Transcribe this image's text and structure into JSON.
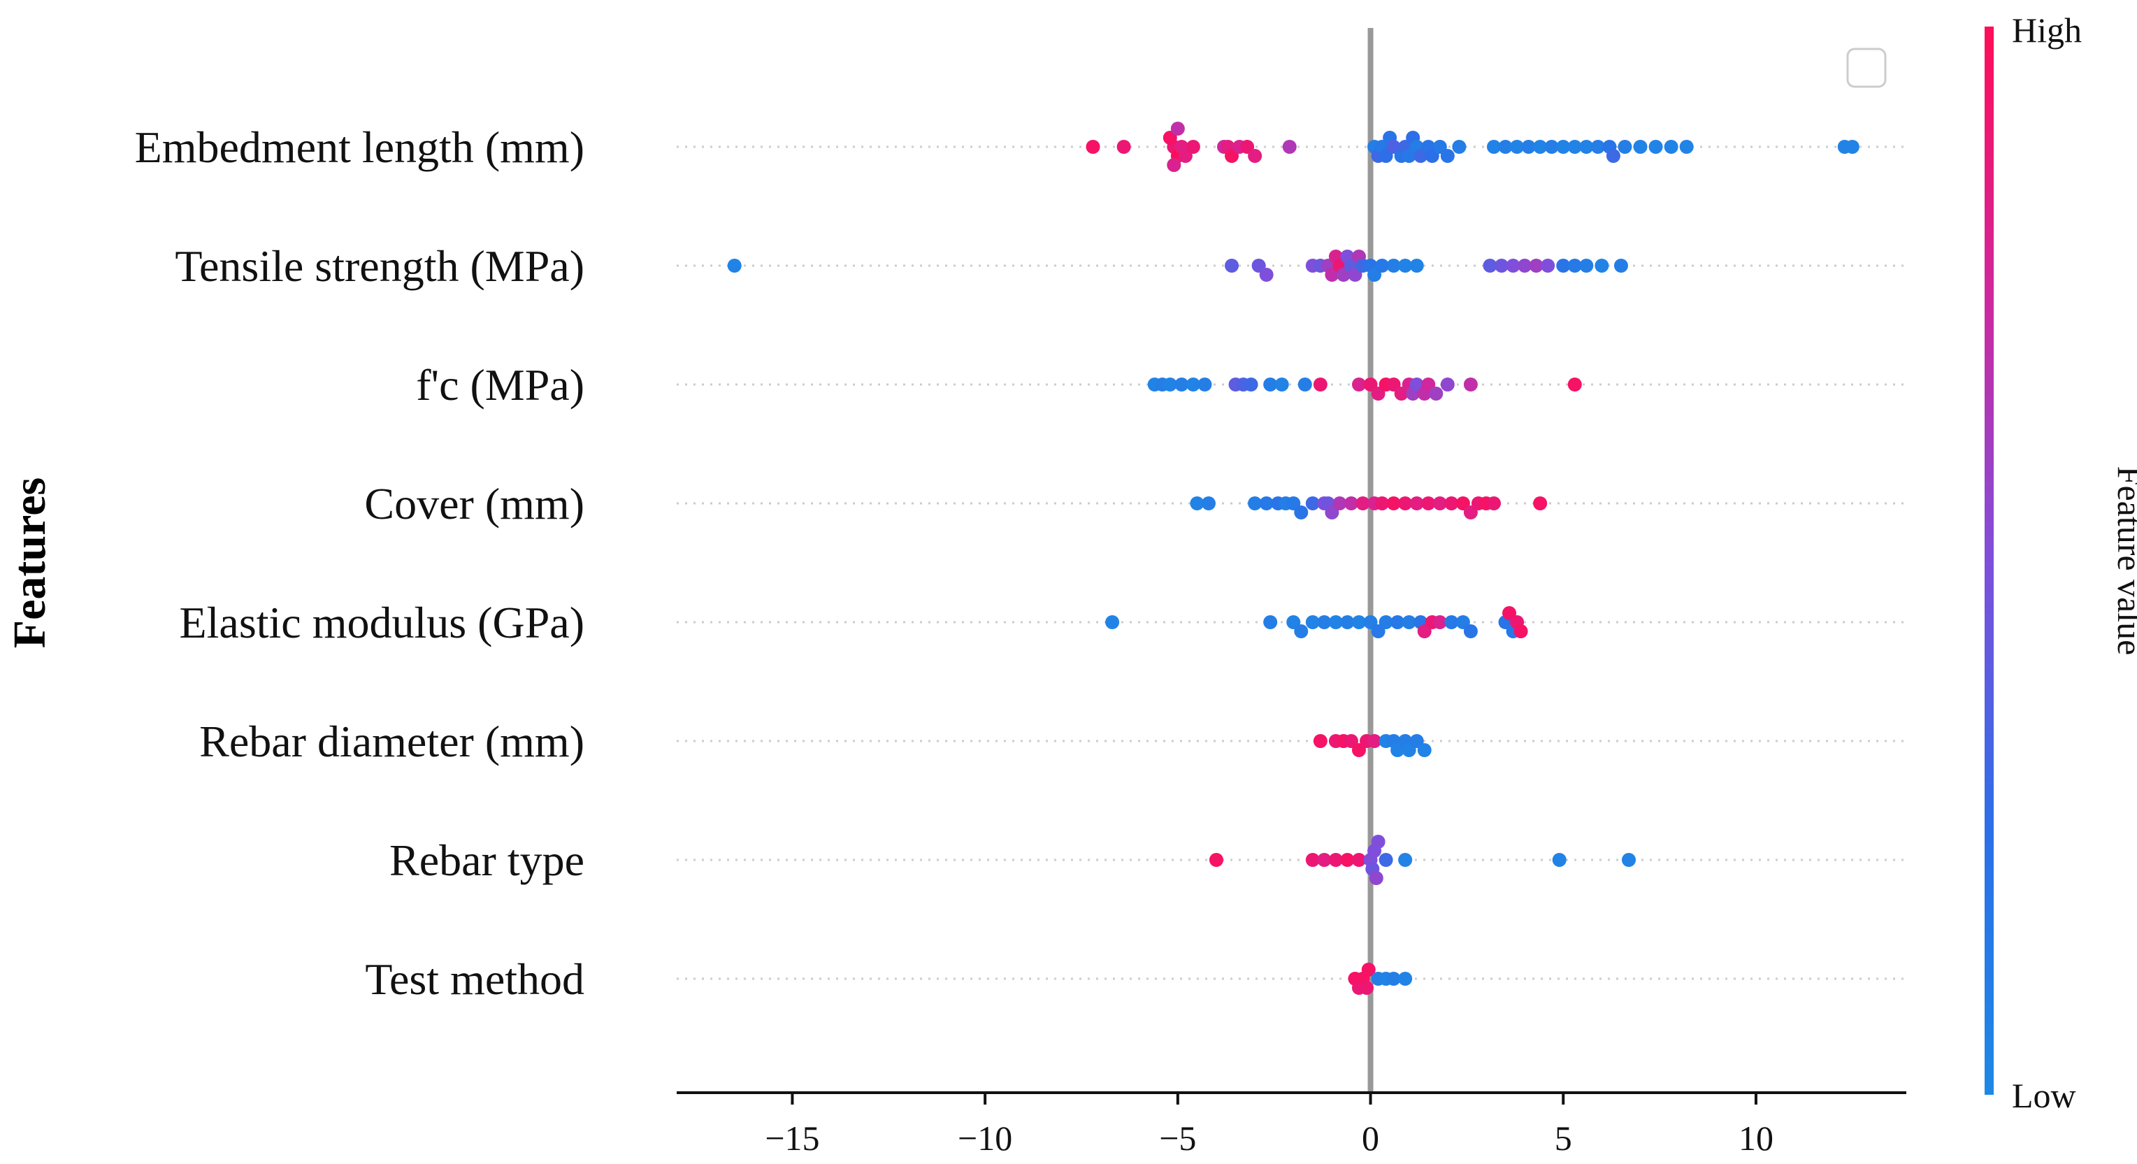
{
  "chart_data": {
    "type": "scatter",
    "subtype": "shap-beeswarm",
    "ylabel": "Features",
    "xlim": [
      -18,
      13.9
    ],
    "xticks": [
      -15,
      -10,
      -5,
      0,
      5,
      10
    ],
    "xtick_labels": [
      "−15",
      "−10",
      "−5",
      "0",
      "5",
      "10"
    ],
    "colorbar": {
      "label": "Feature value",
      "high_label": "High",
      "low_label": "Low",
      "low_color": "#1e88e5",
      "high_color": "#ff0d57"
    },
    "zero_line_color": "#999999",
    "legend": "top-right (empty)",
    "features": [
      {
        "name": "Embedment length (mm)",
        "points": [
          [
            -7.2,
            0.95
          ],
          [
            -6.4,
            0.9
          ],
          [
            -5.1,
            0.9
          ],
          [
            -5.0,
            1.0
          ],
          [
            -5.2,
            0.95
          ],
          [
            -4.9,
            0.85
          ],
          [
            -5.1,
            0.8
          ],
          [
            -4.8,
            0.85
          ],
          [
            -4.6,
            0.9
          ],
          [
            -5.0,
            0.7
          ],
          [
            -3.8,
            0.75
          ],
          [
            -3.7,
            0.85
          ],
          [
            -3.6,
            0.95
          ],
          [
            -3.4,
            0.8
          ],
          [
            -3.2,
            0.9
          ],
          [
            -3.0,
            0.85
          ],
          [
            -2.1,
            0.65
          ],
          [
            0.1,
            0.1
          ],
          [
            0.2,
            0.3
          ],
          [
            0.3,
            0.15
          ],
          [
            0.4,
            0.25
          ],
          [
            0.5,
            0.2
          ],
          [
            0.6,
            0.35
          ],
          [
            0.8,
            0.2
          ],
          [
            0.9,
            0.3
          ],
          [
            1.0,
            0.15
          ],
          [
            1.1,
            0.25
          ],
          [
            1.2,
            0.1
          ],
          [
            1.3,
            0.3
          ],
          [
            1.5,
            0.2
          ],
          [
            1.6,
            0.25
          ],
          [
            1.8,
            0.15
          ],
          [
            2.0,
            0.2
          ],
          [
            2.3,
            0.1
          ],
          [
            3.2,
            0.05
          ],
          [
            3.5,
            0.1
          ],
          [
            3.8,
            0.05
          ],
          [
            4.1,
            0.1
          ],
          [
            4.4,
            0.05
          ],
          [
            4.7,
            0.1
          ],
          [
            5.0,
            0.05
          ],
          [
            5.3,
            0.05
          ],
          [
            5.6,
            0.05
          ],
          [
            5.9,
            0.1
          ],
          [
            6.2,
            0.2
          ],
          [
            6.3,
            0.3
          ],
          [
            6.6,
            0.1
          ],
          [
            7.0,
            0.05
          ],
          [
            7.4,
            0.05
          ],
          [
            7.8,
            0.05
          ],
          [
            8.2,
            0.05
          ],
          [
            12.3,
            0.05
          ],
          [
            12.5,
            0.05
          ]
        ]
      },
      {
        "name": "Tensile strength (MPa)",
        "points": [
          [
            -16.5,
            0.05
          ],
          [
            -3.6,
            0.4
          ],
          [
            -2.9,
            0.45
          ],
          [
            -2.7,
            0.5
          ],
          [
            -1.5,
            0.5
          ],
          [
            -1.3,
            0.45
          ],
          [
            -1.1,
            0.6
          ],
          [
            -1.0,
            0.7
          ],
          [
            -0.9,
            0.8
          ],
          [
            -0.8,
            0.9
          ],
          [
            -0.7,
            0.6
          ],
          [
            -0.6,
            0.5
          ],
          [
            -0.5,
            0.4
          ],
          [
            -0.4,
            0.55
          ],
          [
            -0.3,
            0.65
          ],
          [
            -0.2,
            0.3
          ],
          [
            0.0,
            0.2
          ],
          [
            0.1,
            0.1
          ],
          [
            0.3,
            0.15
          ],
          [
            0.6,
            0.1
          ],
          [
            0.9,
            0.05
          ],
          [
            1.2,
            0.05
          ],
          [
            3.1,
            0.4
          ],
          [
            3.4,
            0.45
          ],
          [
            3.7,
            0.5
          ],
          [
            4.0,
            0.55
          ],
          [
            4.3,
            0.6
          ],
          [
            4.6,
            0.5
          ],
          [
            5.0,
            0.2
          ],
          [
            5.3,
            0.15
          ],
          [
            5.6,
            0.1
          ],
          [
            6.0,
            0.05
          ],
          [
            6.5,
            0.1
          ]
        ]
      },
      {
        "name": "f'c (MPa)",
        "points": [
          [
            -5.6,
            0.05
          ],
          [
            -5.4,
            0.1
          ],
          [
            -5.2,
            0.05
          ],
          [
            -4.9,
            0.1
          ],
          [
            -4.6,
            0.05
          ],
          [
            -4.3,
            0.1
          ],
          [
            -3.5,
            0.4
          ],
          [
            -3.3,
            0.35
          ],
          [
            -3.1,
            0.3
          ],
          [
            -2.6,
            0.1
          ],
          [
            -2.3,
            0.05
          ],
          [
            -1.7,
            0.1
          ],
          [
            -1.3,
            0.9
          ],
          [
            -0.3,
            0.8
          ],
          [
            0.0,
            0.9
          ],
          [
            0.2,
            0.85
          ],
          [
            0.4,
            0.95
          ],
          [
            0.6,
            0.9
          ],
          [
            0.8,
            0.85
          ],
          [
            1.0,
            0.8
          ],
          [
            1.1,
            0.6
          ],
          [
            1.2,
            0.5
          ],
          [
            1.4,
            0.7
          ],
          [
            1.5,
            0.75
          ],
          [
            1.7,
            0.6
          ],
          [
            2.0,
            0.55
          ],
          [
            2.6,
            0.7
          ],
          [
            5.3,
            0.95
          ]
        ]
      },
      {
        "name": "Cover (mm)",
        "points": [
          [
            -4.5,
            0.05
          ],
          [
            -4.2,
            0.1
          ],
          [
            -3.0,
            0.1
          ],
          [
            -2.7,
            0.15
          ],
          [
            -2.4,
            0.2
          ],
          [
            -2.2,
            0.1
          ],
          [
            -2.0,
            0.15
          ],
          [
            -1.8,
            0.2
          ],
          [
            -1.5,
            0.3
          ],
          [
            -1.2,
            0.5
          ],
          [
            -1.1,
            0.45
          ],
          [
            -1.0,
            0.55
          ],
          [
            -0.8,
            0.65
          ],
          [
            -0.5,
            0.7
          ],
          [
            -0.2,
            0.85
          ],
          [
            0.1,
            0.8
          ],
          [
            0.3,
            0.9
          ],
          [
            0.6,
            0.95
          ],
          [
            0.9,
            0.9
          ],
          [
            1.2,
            0.85
          ],
          [
            1.5,
            0.9
          ],
          [
            1.8,
            0.85
          ],
          [
            2.1,
            0.9
          ],
          [
            2.4,
            0.95
          ],
          [
            2.6,
            0.85
          ],
          [
            2.8,
            0.9
          ],
          [
            3.0,
            0.95
          ],
          [
            3.2,
            0.9
          ],
          [
            4.4,
            0.95
          ]
        ]
      },
      {
        "name": "Elastic modulus (GPa)",
        "points": [
          [
            -6.7,
            0.05
          ],
          [
            -2.6,
            0.1
          ],
          [
            -2.0,
            0.05
          ],
          [
            -1.8,
            0.1
          ],
          [
            -1.5,
            0.05
          ],
          [
            -1.2,
            0.1
          ],
          [
            -0.9,
            0.05
          ],
          [
            -0.6,
            0.1
          ],
          [
            -0.3,
            0.05
          ],
          [
            0.0,
            0.1
          ],
          [
            0.2,
            0.15
          ],
          [
            0.4,
            0.1
          ],
          [
            0.7,
            0.15
          ],
          [
            1.0,
            0.1
          ],
          [
            1.3,
            0.2
          ],
          [
            1.4,
            0.85
          ],
          [
            1.6,
            0.9
          ],
          [
            1.8,
            0.8
          ],
          [
            2.1,
            0.15
          ],
          [
            2.4,
            0.1
          ],
          [
            2.6,
            0.2
          ],
          [
            3.5,
            0.2
          ],
          [
            3.7,
            0.15
          ],
          [
            3.6,
            0.95
          ],
          [
            3.8,
            0.9
          ],
          [
            3.9,
            0.95
          ]
        ]
      },
      {
        "name": "Rebar diameter (mm)",
        "points": [
          [
            -1.3,
            0.95
          ],
          [
            -0.9,
            0.9
          ],
          [
            -0.7,
            0.95
          ],
          [
            -0.5,
            0.9
          ],
          [
            -0.3,
            0.95
          ],
          [
            -0.1,
            0.9
          ],
          [
            0.1,
            0.85
          ],
          [
            0.4,
            0.05
          ],
          [
            0.6,
            0.1
          ],
          [
            0.7,
            0.05
          ],
          [
            0.9,
            0.1
          ],
          [
            1.0,
            0.05
          ],
          [
            1.2,
            0.1
          ],
          [
            1.4,
            0.05
          ]
        ]
      },
      {
        "name": "Rebar type",
        "points": [
          [
            -4.0,
            0.95
          ],
          [
            -1.5,
            0.9
          ],
          [
            -1.2,
            0.85
          ],
          [
            -0.9,
            0.9
          ],
          [
            -0.6,
            0.95
          ],
          [
            -0.3,
            0.9
          ],
          [
            0.0,
            0.5
          ],
          [
            0.05,
            0.45
          ],
          [
            0.1,
            0.5
          ],
          [
            0.15,
            0.55
          ],
          [
            0.2,
            0.5
          ],
          [
            0.4,
            0.3
          ],
          [
            0.9,
            0.05
          ],
          [
            4.9,
            0.05
          ],
          [
            6.7,
            0.05
          ]
        ]
      },
      {
        "name": "Test method",
        "points": [
          [
            -0.4,
            0.95
          ],
          [
            -0.3,
            0.9
          ],
          [
            -0.2,
            0.95
          ],
          [
            -0.1,
            0.9
          ],
          [
            -0.05,
            0.95
          ],
          [
            0.2,
            0.1
          ],
          [
            0.4,
            0.05
          ],
          [
            0.6,
            0.1
          ],
          [
            0.9,
            0.05
          ]
        ]
      }
    ]
  }
}
